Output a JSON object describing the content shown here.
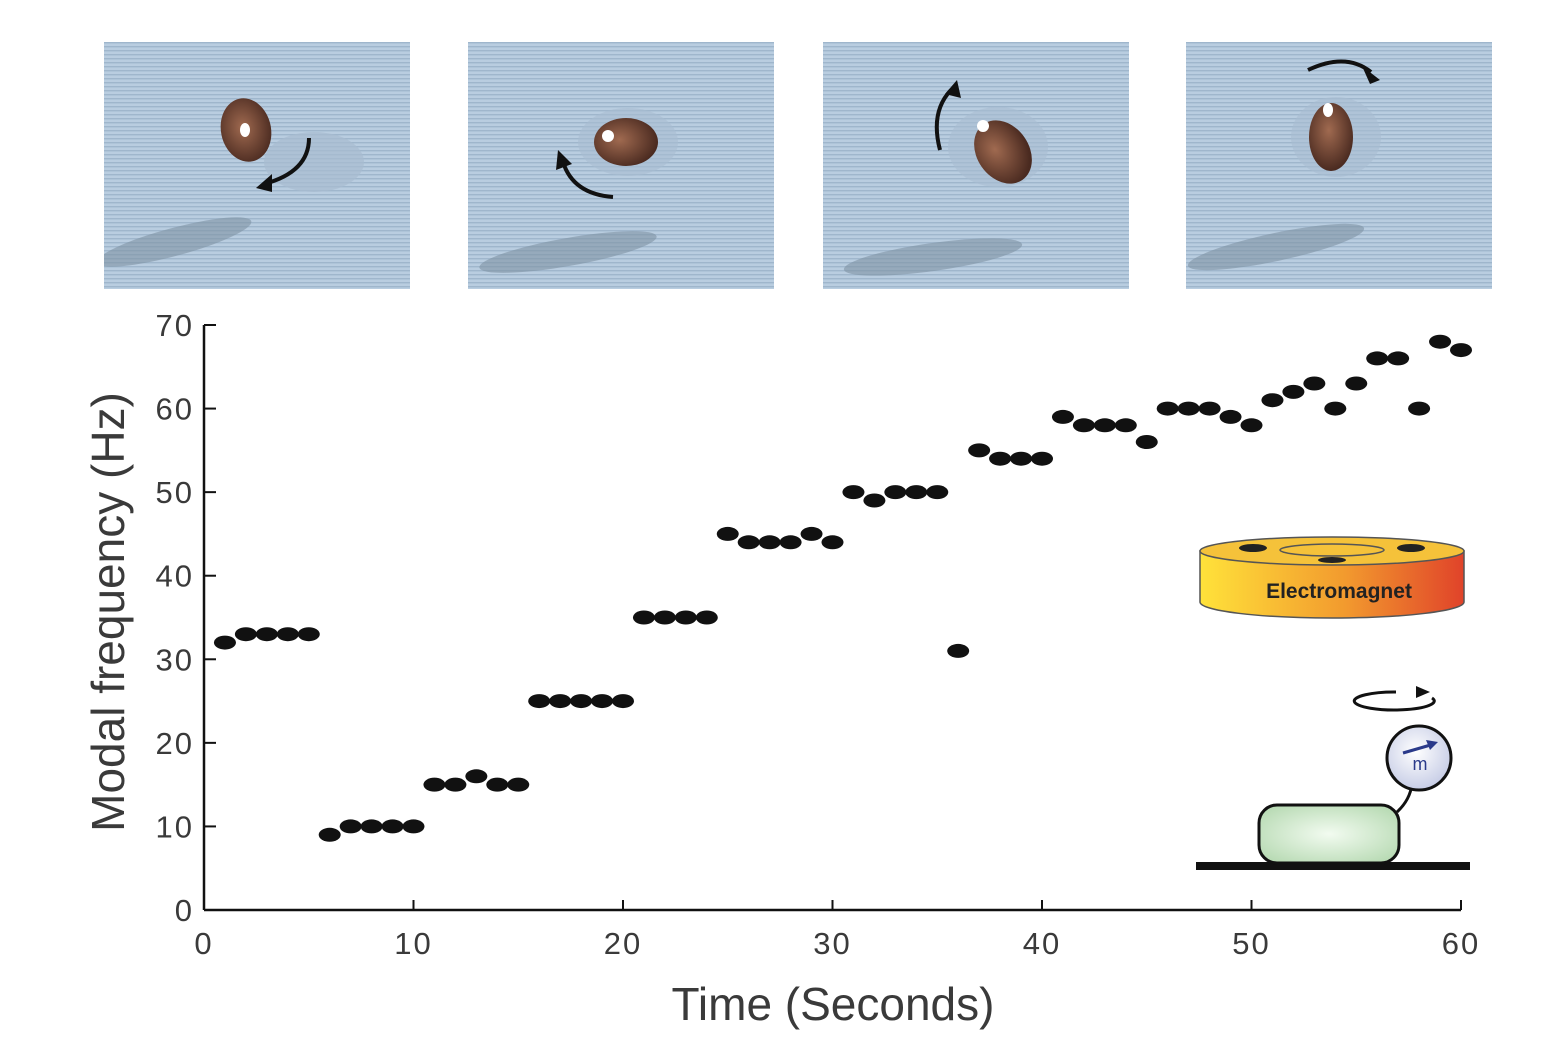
{
  "panels": [
    {
      "arrow": "clockwise-down-icon"
    },
    {
      "arrow": "counterclockwise-up-icon"
    },
    {
      "arrow": "clockwise-up-icon"
    },
    {
      "arrow": "clockwise-right-icon"
    }
  ],
  "chart_data": {
    "type": "scatter",
    "xlabel": "Time (Seconds)",
    "ylabel": "Modal frequency (Hz)",
    "xlim": [
      0,
      60
    ],
    "ylim": [
      0,
      70
    ],
    "xticks": [
      0,
      10,
      20,
      30,
      40,
      50,
      60
    ],
    "yticks": [
      0,
      10,
      20,
      30,
      40,
      50,
      60,
      70
    ],
    "grid": false,
    "marker_color": "#111111",
    "points": [
      [
        1,
        32
      ],
      [
        2,
        33
      ],
      [
        3,
        33
      ],
      [
        4,
        33
      ],
      [
        5,
        33
      ],
      [
        6,
        9
      ],
      [
        7,
        10
      ],
      [
        8,
        10
      ],
      [
        9,
        10
      ],
      [
        10,
        10
      ],
      [
        11,
        15
      ],
      [
        12,
        15
      ],
      [
        13,
        16
      ],
      [
        14,
        15
      ],
      [
        15,
        15
      ],
      [
        16,
        25
      ],
      [
        17,
        25
      ],
      [
        18,
        25
      ],
      [
        19,
        25
      ],
      [
        20,
        25
      ],
      [
        21,
        35
      ],
      [
        22,
        35
      ],
      [
        23,
        35
      ],
      [
        24,
        35
      ],
      [
        25,
        45
      ],
      [
        26,
        44
      ],
      [
        27,
        44
      ],
      [
        28,
        44
      ],
      [
        29,
        45
      ],
      [
        30,
        44
      ],
      [
        31,
        50
      ],
      [
        32,
        49
      ],
      [
        33,
        50
      ],
      [
        34,
        50
      ],
      [
        35,
        50
      ],
      [
        36,
        31
      ],
      [
        37,
        55
      ],
      [
        38,
        54
      ],
      [
        39,
        54
      ],
      [
        40,
        54
      ],
      [
        41,
        59
      ],
      [
        42,
        58
      ],
      [
        43,
        58
      ],
      [
        44,
        58
      ],
      [
        45,
        56
      ],
      [
        46,
        60
      ],
      [
        47,
        60
      ],
      [
        48,
        60
      ],
      [
        49,
        59
      ],
      [
        50,
        58
      ],
      [
        51,
        61
      ],
      [
        52,
        62
      ],
      [
        53,
        63
      ],
      [
        54,
        60
      ],
      [
        55,
        63
      ],
      [
        56,
        66
      ],
      [
        57,
        66
      ],
      [
        58,
        60
      ],
      [
        59,
        68
      ],
      [
        60,
        67
      ]
    ]
  },
  "inset": {
    "electromagnet_label": "Electromagnet",
    "moment_label": "m",
    "gradient_left": "#ffe23a",
    "gradient_right": "#e0432a"
  }
}
